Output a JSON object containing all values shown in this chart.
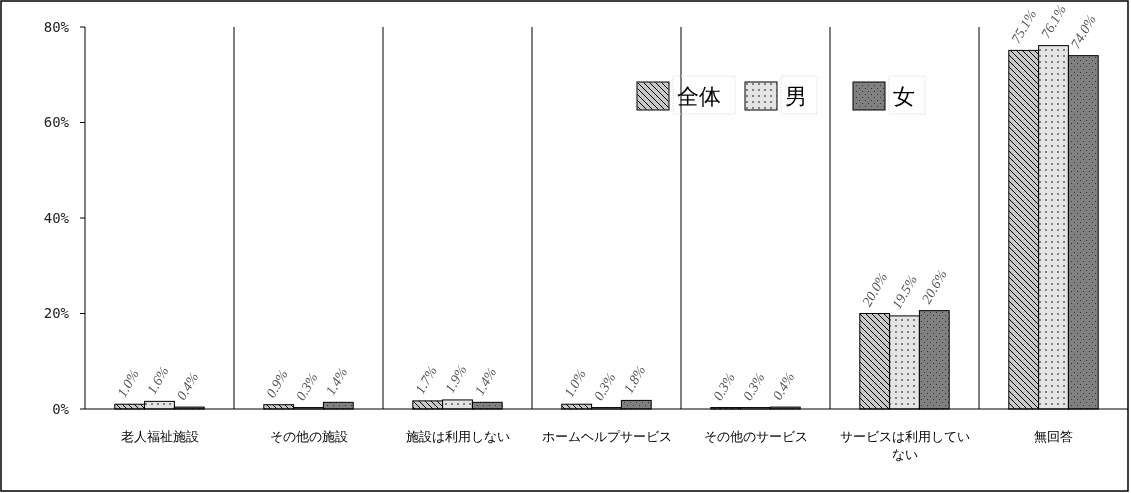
{
  "chart_data": {
    "type": "bar",
    "categories": [
      "老人福祉施設",
      "その他の施設",
      "施設は利用しない",
      "ホームヘルプサービス",
      "その他のサービス",
      "サービスは利用していない",
      "無回答"
    ],
    "series": [
      {
        "name": "全体",
        "color": "#c8c8c8",
        "values": [
          1.0,
          0.9,
          1.7,
          1.0,
          0.3,
          20.0,
          75.1
        ],
        "value_labels": [
          "1.0%",
          "0.9%",
          "1.7%",
          "1.0%",
          "0.3%",
          "20.0%",
          "75.1%"
        ]
      },
      {
        "name": "男",
        "color": "#e4e4e4",
        "values": [
          1.6,
          0.3,
          1.9,
          0.3,
          0.3,
          19.5,
          76.1
        ],
        "value_labels": [
          "1.6%",
          "0.3%",
          "1.9%",
          "0.3%",
          "0.3%",
          "19.5%",
          "76.1%"
        ]
      },
      {
        "name": "女",
        "color": "#808080",
        "values": [
          0.4,
          1.4,
          1.4,
          1.8,
          0.4,
          20.6,
          74.0
        ],
        "value_labels": [
          "0.4%",
          "1.4%",
          "1.4%",
          "1.8%",
          "0.4%",
          "20.6%",
          "74.0%"
        ]
      }
    ],
    "ylim": [
      0,
      80
    ],
    "yticks": [
      {
        "value": 0,
        "label": "0%"
      },
      {
        "value": 20,
        "label": "20%"
      },
      {
        "value": 40,
        "label": "40%"
      },
      {
        "value": 60,
        "label": "60%"
      },
      {
        "value": 80,
        "label": "80%"
      }
    ],
    "grid": false,
    "legend": "top right"
  }
}
